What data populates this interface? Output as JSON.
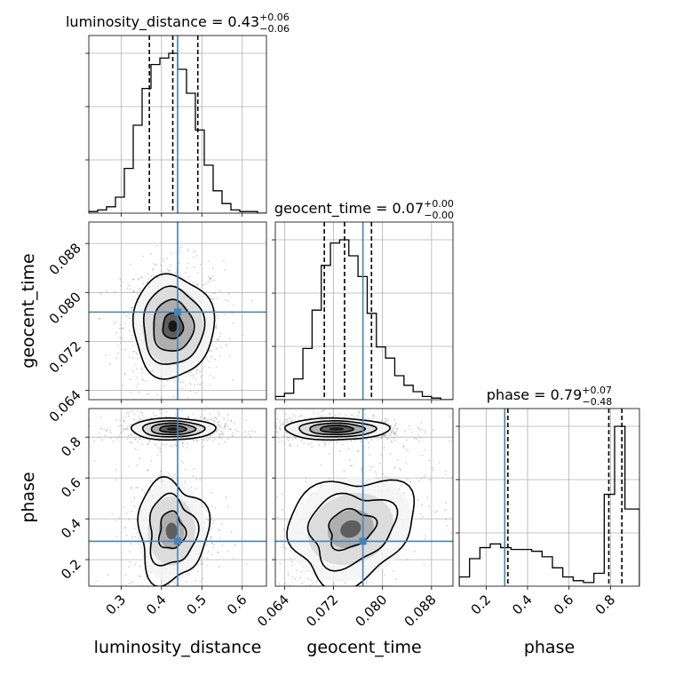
{
  "chart_data": {
    "type": "corner",
    "parameters": [
      "luminosity_distance",
      "geocent_time",
      "phase"
    ],
    "truth_color": "#4682b4",
    "truth": {
      "luminosity_distance": 0.44,
      "geocent_time": 0.0768,
      "phase": 0.29
    },
    "titles": [
      {
        "param": "luminosity_distance",
        "prefix": "luminosity_distance = 0.43",
        "plus": "+0.06",
        "minus": "−0.06"
      },
      {
        "param": "geocent_time",
        "prefix": "geocent_time = 0.07",
        "plus": "+0.00",
        "minus": "−0.00"
      },
      {
        "param": "phase",
        "prefix": "phase = 0.79",
        "plus": "+0.07",
        "minus": "−0.48"
      }
    ],
    "axes": {
      "luminosity_distance": {
        "range": [
          0.22,
          0.66
        ],
        "ticks": [
          0.3,
          0.4,
          0.5,
          0.6
        ],
        "tick_labels": [
          "0.3",
          "0.4",
          "0.5",
          "0.6"
        ],
        "label": "luminosity_distance"
      },
      "geocent_time": {
        "range": [
          0.0625,
          0.0915
        ],
        "ticks": [
          0.064,
          0.072,
          0.08,
          0.088
        ],
        "tick_labels": [
          "0.064",
          "0.072",
          "0.080",
          "0.088"
        ],
        "label": "geocent_time"
      },
      "phase": {
        "range": [
          0.07,
          0.94
        ],
        "ticks": [
          0.2,
          0.4,
          0.6,
          0.8
        ],
        "tick_labels": [
          "0.2",
          "0.4",
          "0.6",
          "0.8"
        ],
        "label": "phase"
      }
    },
    "histograms": {
      "luminosity_distance": {
        "edges": [
          0.22,
          0.242,
          0.264,
          0.286,
          0.308,
          0.33,
          0.352,
          0.374,
          0.396,
          0.418,
          0.44,
          0.462,
          0.484,
          0.506,
          0.528,
          0.55,
          0.572,
          0.594,
          0.616,
          0.638,
          0.66
        ],
        "counts": [
          1,
          2,
          4,
          10,
          28,
          55,
          78,
          93,
          97,
          100,
          90,
          75,
          52,
          30,
          14,
          6,
          2,
          1,
          1,
          0
        ],
        "quantiles": [
          0.37,
          0.428,
          0.49
        ]
      },
      "geocent_time": {
        "edges": [
          0.0625,
          0.064,
          0.0655,
          0.067,
          0.0685,
          0.07,
          0.0715,
          0.073,
          0.0745,
          0.076,
          0.0775,
          0.079,
          0.0805,
          0.082,
          0.0835,
          0.085,
          0.0865,
          0.088,
          0.0895,
          0.0915
        ],
        "counts": [
          2,
          4,
          13,
          32,
          56,
          84,
          98,
          100,
          90,
          77,
          54,
          33,
          26,
          15,
          9,
          5,
          2,
          1,
          0
        ],
        "quantiles": [
          0.0705,
          0.0738,
          0.0782
        ]
      },
      "phase": {
        "edges": [
          0.07,
          0.12,
          0.17,
          0.22,
          0.27,
          0.32,
          0.37,
          0.42,
          0.47,
          0.52,
          0.57,
          0.62,
          0.67,
          0.72,
          0.77,
          0.82,
          0.87,
          0.94
        ],
        "counts": [
          5,
          15,
          21,
          23,
          21,
          20,
          20,
          19,
          16,
          10,
          5,
          3,
          2,
          7,
          50,
          87,
          42
        ],
        "quantiles": [
          0.305,
          0.792,
          0.855
        ]
      }
    },
    "contours_2d": [
      {
        "x": "luminosity_distance",
        "y": "geocent_time",
        "center": [
          0.428,
          0.0745
        ],
        "sigma": [
          0.05,
          0.0042
        ],
        "level_scales": [
          0.5,
          1.0,
          1.5,
          2.0
        ],
        "n_points": 900,
        "wobble": 0.05
      },
      {
        "x": "luminosity_distance",
        "y": "phase",
        "center": [
          0.428,
          0.84
        ],
        "sigma": [
          0.055,
          0.028
        ],
        "level_scales": [
          0.6,
          1.0,
          1.4,
          1.9
        ],
        "n_points": 700,
        "wobble": 0.03
      },
      {
        "x": "luminosity_distance",
        "y": "phase",
        "center": [
          0.425,
          0.34
        ],
        "sigma": [
          0.045,
          0.13
        ],
        "level_scales": [
          0.7,
          1.3,
          1.9
        ],
        "n_points": 600,
        "wobble": 0.12
      },
      {
        "x": "geocent_time",
        "y": "phase",
        "center": [
          0.0725,
          0.84
        ],
        "sigma": [
          0.0045,
          0.028
        ],
        "level_scales": [
          0.6,
          1.0,
          1.4,
          1.9
        ],
        "n_points": 700,
        "wobble": 0.03
      },
      {
        "x": "geocent_time",
        "y": "phase",
        "center": [
          0.0748,
          0.35
        ],
        "sigma": [
          0.0055,
          0.13
        ],
        "level_scales": [
          0.7,
          1.3,
          1.9
        ],
        "n_points": 600,
        "wobble": 0.12,
        "tilt": 0.55
      }
    ],
    "grid": true,
    "contour_color": "#000000",
    "scatter_color": "#9a9a9a"
  }
}
